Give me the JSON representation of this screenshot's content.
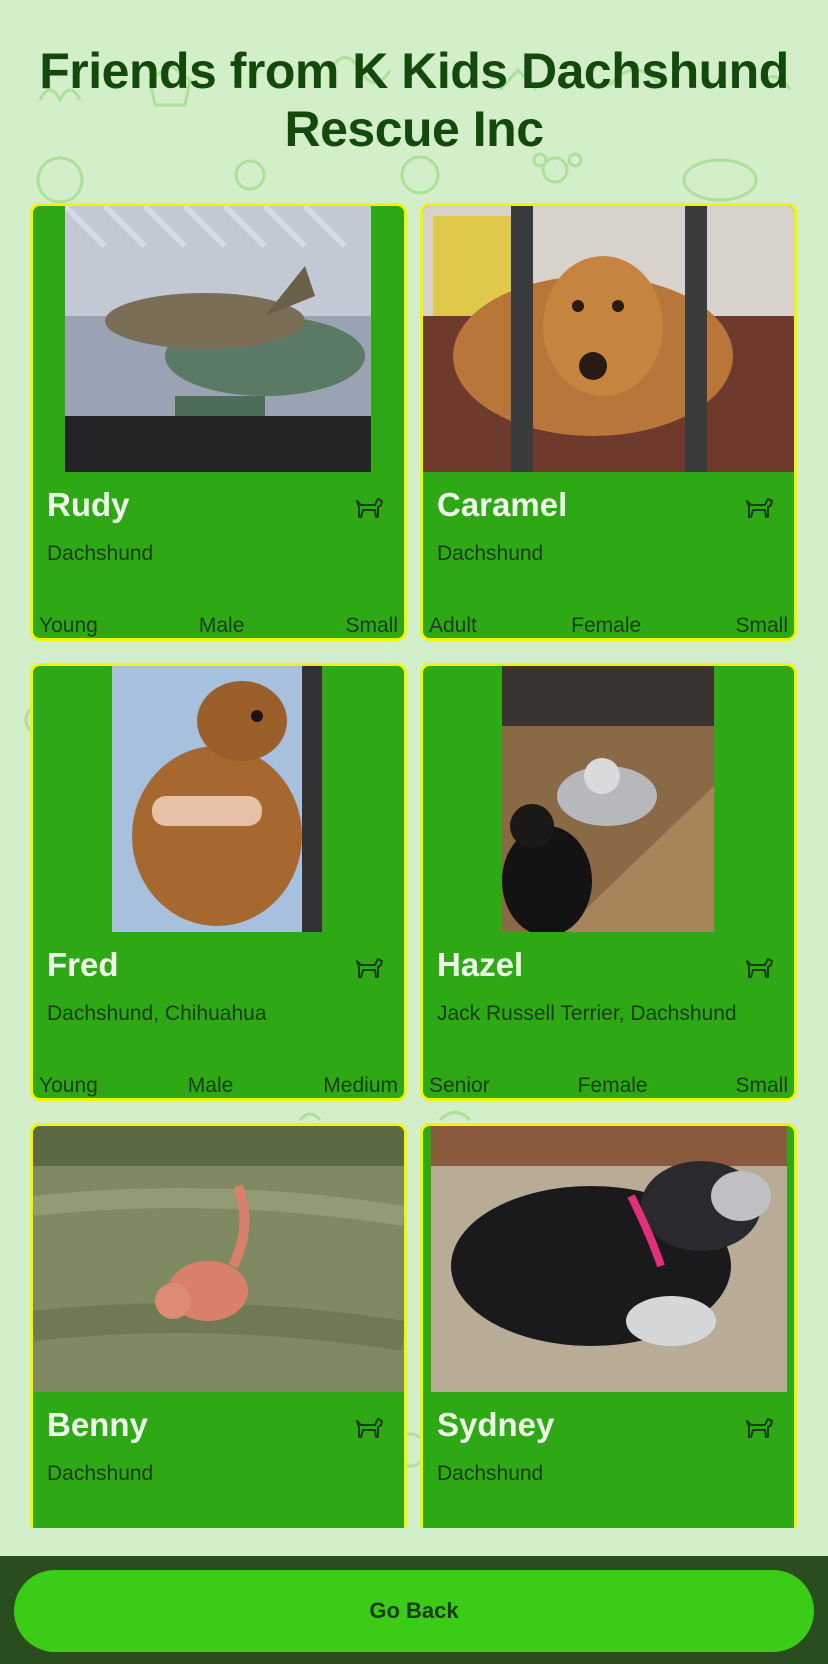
{
  "page": {
    "title": "Friends from K Kids Dachshund Rescue Inc"
  },
  "pets": [
    {
      "name": "Rudy",
      "breed": "Dachshund",
      "age": "Young",
      "gender": "Male",
      "size": "Small",
      "icon": "dog-icon"
    },
    {
      "name": "Caramel",
      "breed": "Dachshund",
      "age": "Adult",
      "gender": "Female",
      "size": "Small",
      "icon": "dog-icon"
    },
    {
      "name": "Fred",
      "breed": "Dachshund, Chihuahua",
      "age": "Young",
      "gender": "Male",
      "size": "Medium",
      "icon": "dog-icon"
    },
    {
      "name": "Hazel",
      "breed": "Jack Russell Terrier, Dachshund",
      "age": "Senior",
      "gender": "Female",
      "size": "Small",
      "icon": "dog-icon"
    },
    {
      "name": "Benny",
      "breed": "Dachshund",
      "age": "",
      "gender": "",
      "size": "",
      "icon": "dog-icon"
    },
    {
      "name": "Sydney",
      "breed": "Dachshund",
      "age": "",
      "gender": "",
      "size": "",
      "icon": "dog-icon"
    }
  ],
  "footer": {
    "back_label": "Go Back"
  },
  "colors": {
    "background": "#d3efc9",
    "card": "#2fa815",
    "card_border": "#f2f500",
    "title": "#134a0c",
    "button": "#3bcc17",
    "footer": "#2a4d1f"
  }
}
